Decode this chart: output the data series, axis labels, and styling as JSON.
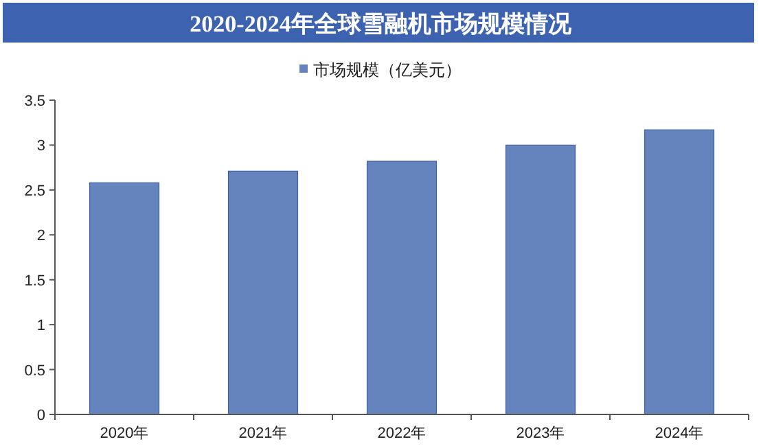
{
  "chart_data": {
    "type": "bar",
    "title": "2020-2024年全球雪融机市场规模情况",
    "categories": [
      "2020年",
      "2021年",
      "2022年",
      "2023年",
      "2024年"
    ],
    "series": [
      {
        "name": "市场规模（亿美元）",
        "color": "#6584bd",
        "values": [
          2.58,
          2.71,
          2.82,
          3.0,
          3.17
        ]
      }
    ],
    "ylim": [
      0,
      3.5
    ],
    "yticks": [
      0,
      0.5,
      1,
      1.5,
      2,
      2.5,
      3,
      3.5
    ],
    "grid": false,
    "legend": "top"
  }
}
